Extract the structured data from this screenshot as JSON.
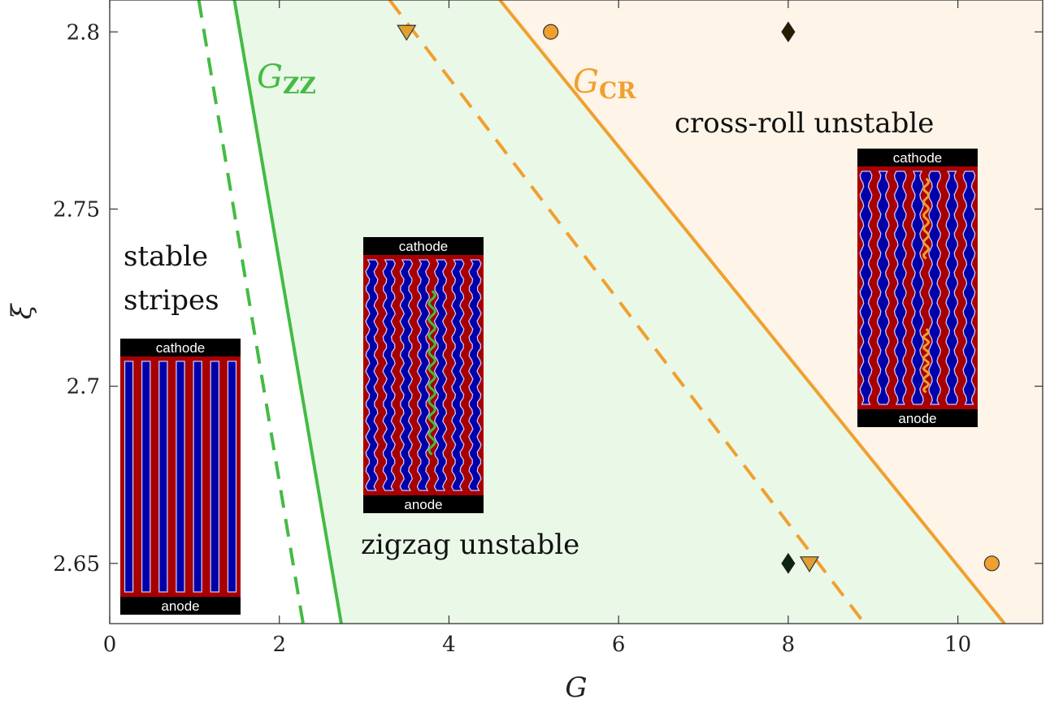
{
  "chart_data": {
    "type": "line",
    "title": "",
    "xlabel": "G",
    "ylabel": "ξ",
    "xlim": [
      0,
      11
    ],
    "ylim": [
      2.633,
      2.809
    ],
    "xticks": [
      "0",
      "2",
      "4",
      "6",
      "8",
      "10"
    ],
    "yticks": [
      "2.65",
      "2.7",
      "2.75",
      "2.8"
    ],
    "grid": false,
    "colors": {
      "zigzag": "#44bb44",
      "crossroll": "#f0a030",
      "zigzag_fill": "#eaf8e8",
      "crossroll_fill": "#fef4e8",
      "stripe_red": "#a80000",
      "stripe_blue": "#0000a8"
    },
    "series": [
      {
        "label": "G",
        "label_sub": "ZZ",
        "style": "solid",
        "color": "#44bb44",
        "x": [
          1.47,
          2.73
        ],
        "y": [
          2.809,
          2.633
        ]
      },
      {
        "style": "dashed",
        "color": "#44bb44",
        "x": [
          1.05,
          2.28
        ],
        "y": [
          2.809,
          2.633
        ]
      },
      {
        "label": "G",
        "label_sub": "CR",
        "style": "solid",
        "color": "#f0a030",
        "x": [
          4.6,
          10.55
        ],
        "y": [
          2.809,
          2.633
        ]
      },
      {
        "style": "dashed",
        "color": "#f0a030",
        "x": [
          3.3,
          8.9
        ],
        "y": [
          2.809,
          2.633
        ]
      }
    ],
    "markers": [
      {
        "shape": "triangle-down",
        "color": "#e0a030",
        "x": 3.5,
        "y": 2.8
      },
      {
        "shape": "circle",
        "color": "#f0a030",
        "x": 5.2,
        "y": 2.8
      },
      {
        "shape": "diamond",
        "color": "#2a1c00",
        "x": 8.0,
        "y": 2.8
      },
      {
        "shape": "diamond",
        "color": "#0d2410",
        "x": 8.0,
        "y": 2.65
      },
      {
        "shape": "triangle-down",
        "color": "#e0a030",
        "x": 8.25,
        "y": 2.65
      },
      {
        "shape": "circle",
        "color": "#f0a030",
        "x": 10.4,
        "y": 2.65
      }
    ],
    "regions": [
      {
        "text_lines": [
          "stable",
          "stripes"
        ]
      },
      {
        "text_lines": [
          "zigzag unstable"
        ]
      },
      {
        "text_lines": [
          "cross-roll unstable"
        ]
      }
    ],
    "insets": [
      {
        "top_label": "cathode",
        "bottom_label": "anode",
        "pattern": "straight",
        "stripes": 7
      },
      {
        "top_label": "cathode",
        "bottom_label": "anode",
        "pattern": "zigzag",
        "stripes": 7,
        "highlight": "#44bb44"
      },
      {
        "top_label": "cathode",
        "bottom_label": "anode",
        "pattern": "crossroll",
        "stripes": 7,
        "highlight": "#f0a030"
      }
    ]
  }
}
